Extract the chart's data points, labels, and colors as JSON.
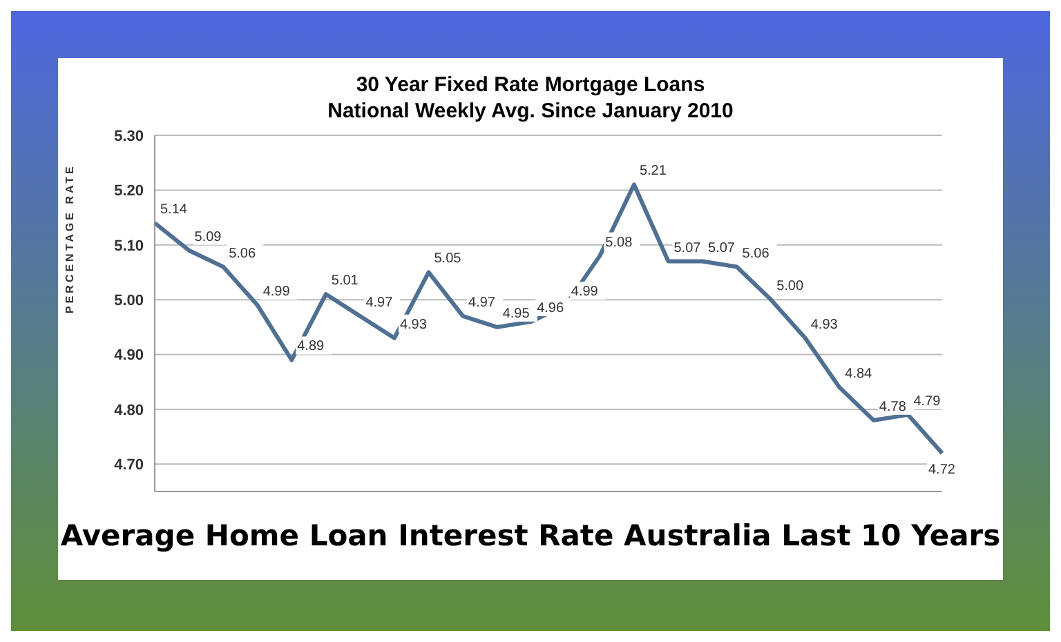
{
  "chart_data": {
    "type": "line",
    "title": "30 Year Fixed Rate Mortgage Loans",
    "subtitle": "National Weekly Avg. Since January 2010",
    "ylabel": "PERCENTAGE RATE",
    "annotations": [
      "Average Home Loan Interest Rate Australia Last 10 Years"
    ],
    "categories": [
      null,
      null,
      null,
      null,
      null,
      null,
      null,
      null,
      null,
      null,
      null,
      null,
      null,
      null,
      null,
      null,
      null,
      null,
      null,
      null,
      null,
      null,
      null,
      null
    ],
    "series": [
      {
        "color": "#4f7093",
        "values": [
          5.14,
          5.09,
          5.06,
          4.99,
          4.89,
          5.01,
          4.97,
          4.93,
          5.05,
          4.97,
          4.95,
          4.96,
          4.99,
          5.08,
          5.21,
          5.07,
          5.07,
          5.06,
          5.0,
          4.93,
          4.84,
          4.78,
          4.79,
          4.72
        ],
        "value_labels": [
          "5.14",
          "5.09",
          "5.06",
          "4.99",
          "4.89",
          "5.01",
          "4.97",
          "4.93",
          "5.05",
          "4.97",
          "4.95",
          "4.96",
          "4.99",
          "5.08",
          "5.21",
          "5.07",
          "5.07",
          "5.06",
          "5.00",
          "4.93",
          "4.84",
          "4.78",
          "4.79",
          "4.72"
        ]
      }
    ],
    "ylim": [
      4.65,
      5.3
    ],
    "yticks": [
      {
        "value": 4.7,
        "label": "4.70"
      },
      {
        "value": 4.8,
        "label": "4.80"
      },
      {
        "value": 4.9,
        "label": "4.90"
      },
      {
        "value": 5.0,
        "label": "5.00"
      },
      {
        "value": 5.1,
        "label": "5.10"
      },
      {
        "value": 5.2,
        "label": "5.20"
      },
      {
        "value": 5.3,
        "label": "5.30"
      }
    ],
    "grid": "y",
    "marker": "none",
    "line_style": "solid",
    "legend": false,
    "tick_labels": "y"
  }
}
